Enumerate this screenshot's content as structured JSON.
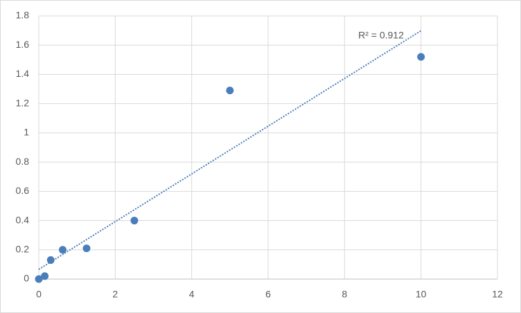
{
  "chart_data": {
    "type": "scatter",
    "x": [
      0,
      0.156,
      0.3125,
      0.625,
      1.25,
      2.5,
      5,
      10
    ],
    "values": [
      0,
      0.02,
      0.13,
      0.2,
      0.21,
      0.4,
      1.29,
      1.52
    ],
    "color": "#4a7ebb",
    "xlim": [
      0,
      12
    ],
    "xticks": [
      0,
      2,
      4,
      6,
      8,
      10,
      12
    ],
    "ylim": [
      0,
      1.8
    ],
    "yticks": [
      0,
      0.2,
      0.4,
      0.6,
      0.8,
      1,
      1.2,
      1.4,
      1.6,
      1.8
    ],
    "grid": true,
    "trendline": "linear",
    "annotation": "R² = 0.912"
  }
}
